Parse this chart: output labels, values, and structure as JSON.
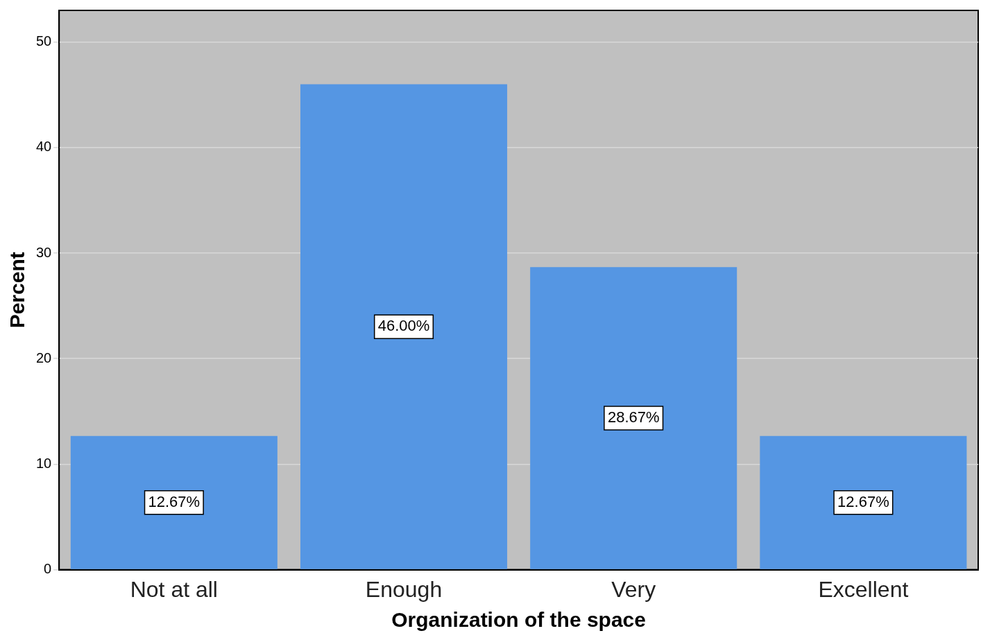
{
  "chart_data": {
    "type": "bar",
    "xlabel": "Organization of the space",
    "ylabel": "Percent",
    "categories": [
      "Not at all",
      "Enough",
      "Very",
      "Excellent"
    ],
    "values": [
      12.67,
      46.0,
      28.67,
      12.67
    ],
    "value_labels": [
      "12.67%",
      "46.00%",
      "28.67%",
      "12.67%"
    ],
    "color": "#5596e3",
    "ylim": [
      0,
      53
    ],
    "yticks": [
      0,
      10,
      20,
      30,
      40,
      50
    ],
    "grid": "y",
    "legend": false
  }
}
